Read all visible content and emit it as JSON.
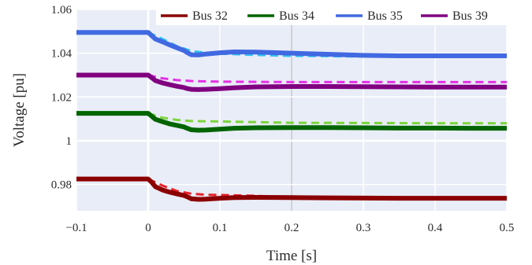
{
  "chart_data": {
    "type": "line",
    "xlabel": "Time [s]",
    "ylabel": "Voltage [pu]",
    "xlim": [
      -0.1,
      0.5
    ],
    "ylim": [
      0.968,
      1.06
    ],
    "x_ticks": [
      -0.1,
      0,
      0.1,
      0.2,
      0.3,
      0.4,
      0.5
    ],
    "x_tick_labels": [
      "−0.1",
      "0",
      "0.1",
      "0.2",
      "0.3",
      "0.4",
      "0.5"
    ],
    "y_ticks": [
      0.98,
      1,
      1.02,
      1.04,
      1.06
    ],
    "y_tick_labels": [
      "0.98",
      "1",
      "1.02",
      "1.04",
      "1.06"
    ],
    "grid": true,
    "legend_position": "top-right",
    "plot_background": "#e9edf7",
    "series": [
      {
        "name": "Bus 32",
        "color": "#8b0000",
        "dash_color": "#e8222a",
        "x": [
          -0.1,
          0,
          0.005,
          0.01,
          0.02,
          0.03,
          0.04,
          0.05,
          0.055,
          0.06,
          0.07,
          0.08,
          0.1,
          0.12,
          0.15,
          0.2,
          0.25,
          0.3,
          0.35,
          0.4,
          0.45,
          0.5
        ],
        "values": [
          0.9825,
          0.9825,
          0.981,
          0.979,
          0.9775,
          0.9765,
          0.9757,
          0.975,
          0.9743,
          0.9735,
          0.9732,
          0.9733,
          0.9737,
          0.974,
          0.9741,
          0.974,
          0.9739,
          0.9738,
          0.9737,
          0.9737,
          0.9737,
          0.9737
        ],
        "reference_x": [
          0,
          0.02,
          0.04,
          0.06,
          0.08,
          0.1,
          0.15,
          0.2,
          0.3,
          0.4,
          0.5
        ],
        "reference_values": [
          0.9825,
          0.9795,
          0.977,
          0.9758,
          0.9753,
          0.9752,
          0.9748,
          0.9742,
          0.974,
          0.9738,
          0.9738
        ]
      },
      {
        "name": "Bus 34",
        "color": "#006400",
        "dash_color": "#7bd63a",
        "x": [
          -0.1,
          0,
          0.005,
          0.01,
          0.02,
          0.03,
          0.04,
          0.05,
          0.055,
          0.06,
          0.07,
          0.08,
          0.1,
          0.12,
          0.15,
          0.2,
          0.25,
          0.3,
          0.35,
          0.4,
          0.45,
          0.5
        ],
        "values": [
          1.0125,
          1.0125,
          1.0112,
          1.0098,
          1.0087,
          1.0077,
          1.007,
          1.0063,
          1.0056,
          1.005,
          1.0048,
          1.0049,
          1.0053,
          1.0057,
          1.0059,
          1.006,
          1.006,
          1.0059,
          1.0058,
          1.0058,
          1.0057,
          1.0057
        ],
        "reference_x": [
          0,
          0.02,
          0.04,
          0.06,
          0.08,
          0.1,
          0.15,
          0.2,
          0.3,
          0.4,
          0.5
        ],
        "reference_values": [
          1.0125,
          1.0105,
          1.0095,
          1.009,
          1.0089,
          1.0088,
          1.0085,
          1.0082,
          1.0081,
          1.008,
          1.008
        ]
      },
      {
        "name": "Bus 35",
        "color": "#4169e1",
        "dash_color": "#2ec4f0",
        "x": [
          -0.1,
          0,
          0.005,
          0.01,
          0.02,
          0.03,
          0.04,
          0.05,
          0.055,
          0.06,
          0.07,
          0.08,
          0.1,
          0.12,
          0.15,
          0.2,
          0.25,
          0.3,
          0.35,
          0.4,
          0.45,
          0.5
        ],
        "values": [
          1.0495,
          1.0495,
          1.048,
          1.0465,
          1.0452,
          1.0438,
          1.0425,
          1.0412,
          1.0402,
          1.0393,
          1.0392,
          1.0396,
          1.0402,
          1.0406,
          1.0405,
          1.04,
          1.0395,
          1.039,
          1.0388,
          1.0388,
          1.0388,
          1.0388
        ],
        "reference_x": [
          0,
          0.02,
          0.04,
          0.06,
          0.08,
          0.1,
          0.15,
          0.2,
          0.3,
          0.4,
          0.5
        ],
        "reference_values": [
          1.0495,
          1.0465,
          1.0432,
          1.041,
          1.0402,
          1.0398,
          1.0392,
          1.0388,
          1.0385,
          1.0384,
          1.0384
        ]
      },
      {
        "name": "Bus 39",
        "color": "#800080",
        "dash_color": "#e62fe6",
        "x": [
          -0.1,
          0,
          0.005,
          0.01,
          0.02,
          0.03,
          0.04,
          0.05,
          0.055,
          0.06,
          0.07,
          0.08,
          0.1,
          0.12,
          0.15,
          0.2,
          0.25,
          0.3,
          0.35,
          0.4,
          0.45,
          0.5
        ],
        "values": [
          1.03,
          1.03,
          1.0288,
          1.0275,
          1.0264,
          1.0256,
          1.0249,
          1.0243,
          1.0238,
          1.0235,
          1.0234,
          1.0235,
          1.0238,
          1.0242,
          1.0246,
          1.0248,
          1.0248,
          1.0247,
          1.0246,
          1.0245,
          1.0245,
          1.0245
        ],
        "reference_x": [
          0,
          0.02,
          0.04,
          0.06,
          0.08,
          0.1,
          0.15,
          0.2,
          0.3,
          0.4,
          0.5
        ],
        "reference_values": [
          1.03,
          1.0285,
          1.0277,
          1.0273,
          1.0271,
          1.027,
          1.0269,
          1.0268,
          1.0268,
          1.0268,
          1.0268
        ]
      }
    ]
  }
}
